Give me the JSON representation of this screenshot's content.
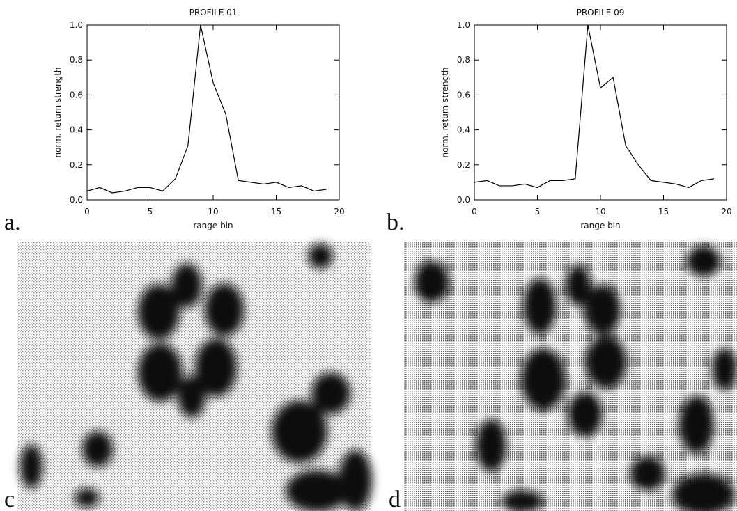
{
  "chart_data": [
    {
      "type": "line",
      "title": "PROFILE 01",
      "x_label": "range bin",
      "y_label": "norm. return strength",
      "x": [
        0,
        1,
        2,
        3,
        4,
        5,
        6,
        7,
        8,
        9,
        10,
        11,
        12,
        13,
        14,
        15,
        16,
        17,
        18,
        19
      ],
      "values": [
        0.05,
        0.07,
        0.04,
        0.05,
        0.07,
        0.07,
        0.05,
        0.12,
        0.31,
        1.0,
        0.67,
        0.49,
        0.11,
        0.1,
        0.09,
        0.1,
        0.07,
        0.08,
        0.05,
        0.06
      ],
      "color": "#000000",
      "xlim": [
        0,
        20
      ],
      "xticks": [
        0,
        5,
        10,
        15,
        20
      ],
      "ylim": [
        0,
        1
      ],
      "yticks": [
        {
          "value": 0,
          "label": "0.0"
        },
        0.2,
        0.4,
        0.6,
        0.8,
        {
          "value": 1,
          "label": "1.0"
        }
      ]
    },
    {
      "type": "line",
      "title": "PROFILE 09",
      "x_label": "range bin",
      "y_label": "norm. return strength",
      "x": [
        0,
        1,
        2,
        3,
        4,
        5,
        6,
        7,
        8,
        9,
        10,
        11,
        12,
        13,
        14,
        15,
        16,
        17,
        18,
        19
      ],
      "values": [
        0.1,
        0.11,
        0.08,
        0.08,
        0.09,
        0.07,
        0.11,
        0.11,
        0.12,
        1.0,
        0.64,
        0.7,
        0.31,
        0.2,
        0.11,
        0.1,
        0.09,
        0.07,
        0.11,
        0.12
      ],
      "color": "#000000",
      "xlim": [
        0,
        20
      ],
      "xticks": [
        0,
        5,
        10,
        15,
        20
      ],
      "ylim": [
        0,
        1
      ],
      "yticks": [
        {
          "value": 0,
          "label": "0.0"
        },
        0.2,
        0.4,
        0.6,
        0.8,
        {
          "value": 1,
          "label": "1.0"
        }
      ]
    }
  ],
  "panel_labels": [
    "a.",
    "b.",
    "c",
    "d"
  ]
}
